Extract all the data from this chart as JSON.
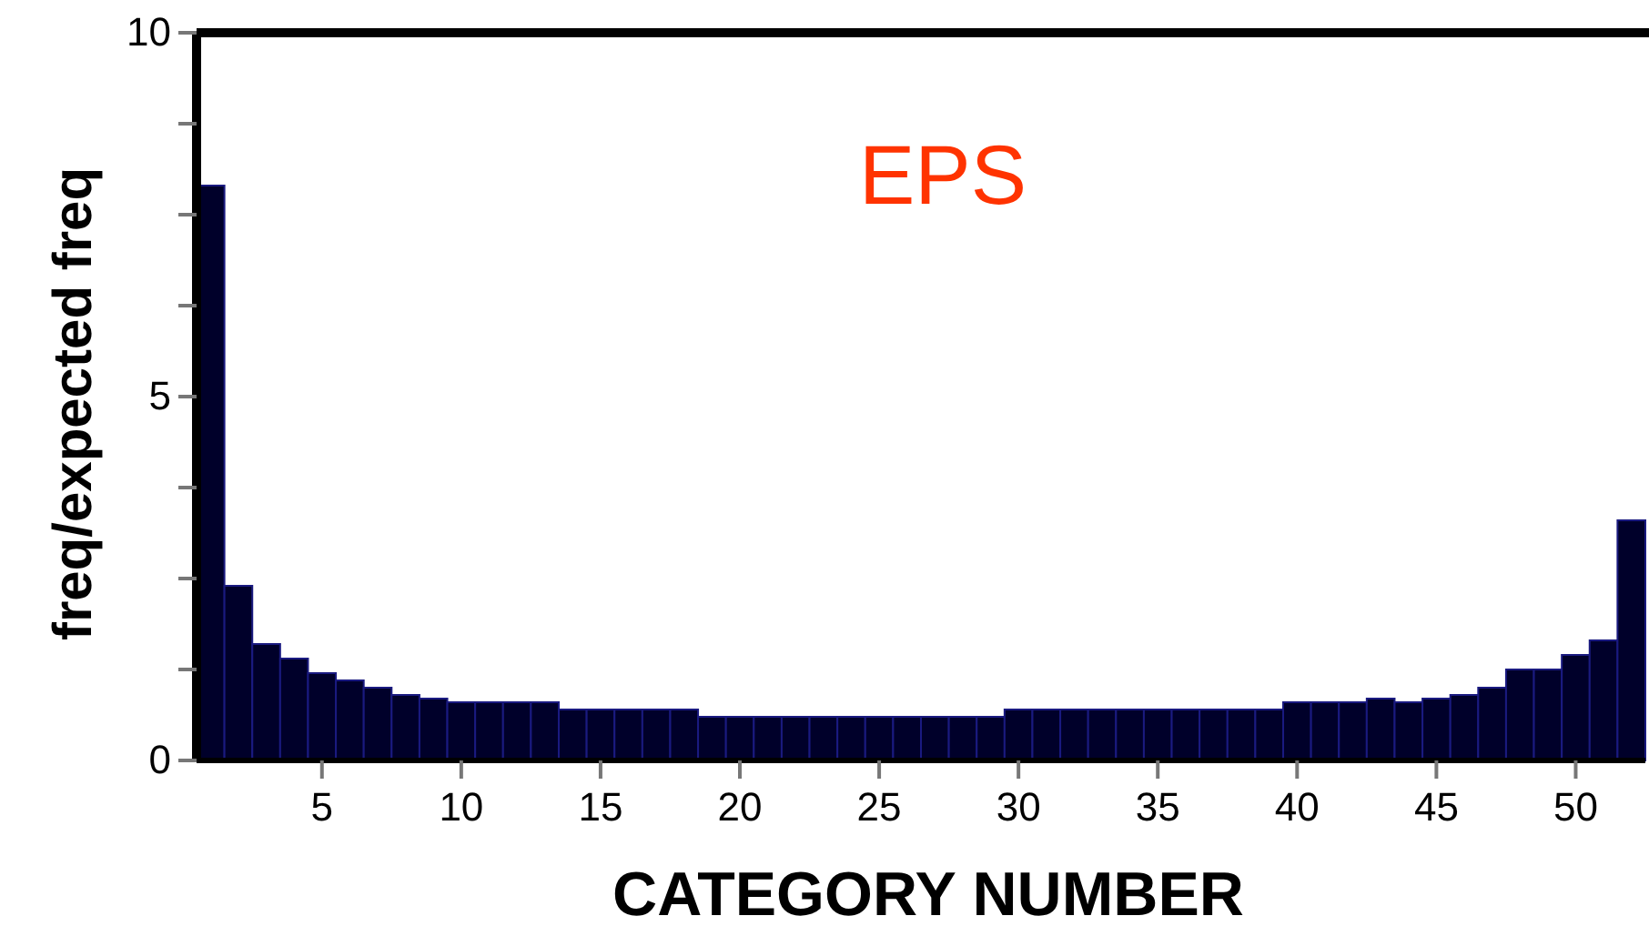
{
  "chart_data": {
    "type": "bar",
    "title": "EPS",
    "xlabel": "CATEGORY NUMBER",
    "ylabel": "freq/expected freq",
    "categories": [
      null,
      null,
      null,
      null,
      "5",
      null,
      null,
      null,
      null,
      "10",
      null,
      null,
      null,
      null,
      "15",
      null,
      null,
      null,
      null,
      "20",
      null,
      null,
      null,
      null,
      "25",
      null,
      null,
      null,
      null,
      "30",
      null,
      null,
      null,
      null,
      "35",
      null,
      null,
      null,
      null,
      "40",
      null,
      null,
      null,
      null,
      "45",
      null,
      null,
      null,
      null,
      "50",
      null,
      null
    ],
    "values": [
      7.9,
      2.4,
      1.6,
      1.4,
      1.2,
      1.1,
      1.0,
      0.9,
      0.85,
      0.8,
      0.8,
      0.8,
      0.8,
      0.7,
      0.7,
      0.7,
      0.7,
      0.7,
      0.6,
      0.6,
      0.6,
      0.6,
      0.6,
      0.6,
      0.6,
      0.6,
      0.6,
      0.6,
      0.6,
      0.7,
      0.7,
      0.7,
      0.7,
      0.7,
      0.7,
      0.7,
      0.7,
      0.7,
      0.7,
      0.8,
      0.8,
      0.8,
      0.85,
      0.8,
      0.85,
      0.9,
      1.0,
      1.25,
      1.25,
      1.45,
      1.65,
      3.3
    ],
    "color": "#00002a",
    "ylim": [
      0,
      10
    ],
    "yticks": [
      0,
      {
        "value": 1.25,
        "label": null
      },
      {
        "value": 2.5,
        "label": null
      },
      {
        "value": 3.75,
        "label": null
      },
      5,
      {
        "value": 6.25,
        "label": null
      },
      {
        "value": 7.5,
        "label": null
      },
      {
        "value": 8.75,
        "label": null
      },
      10
    ],
    "grid": false
  }
}
